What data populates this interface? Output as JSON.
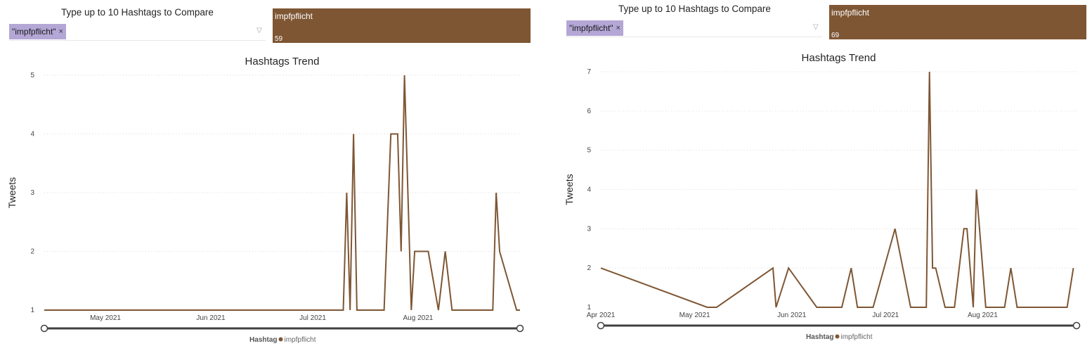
{
  "colors": {
    "series": "#7e5634",
    "chip": "#b4a7d6",
    "grid": "#d9d9d9",
    "slider": "#404040"
  },
  "panels": [
    {
      "filter_title": "Type up to 10 Hashtags to Compare",
      "chip_label": "\"impfpflicht\"",
      "chip_close": "×",
      "funnel_icon": "▽",
      "card_name": "impfpflicht",
      "card_count": "59",
      "legend_title": "Hashtag",
      "legend_item": "impfpflicht",
      "chart_data": {
        "type": "line",
        "title": "Hashtags Trend",
        "xlabel": "",
        "ylabel": "Tweets",
        "xlim": [
          "2021-04-13",
          "2021-08-31"
        ],
        "ylim": [
          1,
          5
        ],
        "yticks": [
          1,
          2,
          3,
          4,
          5
        ],
        "xticks": [
          {
            "date": "2021-05-01",
            "label": "May 2021"
          },
          {
            "date": "2021-06-01",
            "label": "Jun 2021"
          },
          {
            "date": "2021-07-01",
            "label": "Jul 2021"
          },
          {
            "date": "2021-08-01",
            "label": "Aug 2021"
          }
        ],
        "grid": true,
        "legend": "bottom-center",
        "series": [
          {
            "name": "impfpflicht",
            "points": [
              [
                "2021-04-13",
                1
              ],
              [
                "2021-07-10",
                1
              ],
              [
                "2021-07-11",
                3
              ],
              [
                "2021-07-12",
                1
              ],
              [
                "2021-07-13",
                4
              ],
              [
                "2021-07-14",
                1
              ],
              [
                "2021-07-22",
                1
              ],
              [
                "2021-07-24",
                4
              ],
              [
                "2021-07-26",
                4
              ],
              [
                "2021-07-27",
                2
              ],
              [
                "2021-07-28",
                5
              ],
              [
                "2021-07-30",
                1
              ],
              [
                "2021-07-31",
                2
              ],
              [
                "2021-08-04",
                2
              ],
              [
                "2021-08-07",
                1
              ],
              [
                "2021-08-09",
                2
              ],
              [
                "2021-08-11",
                1
              ],
              [
                "2021-08-23",
                1
              ],
              [
                "2021-08-24",
                3
              ],
              [
                "2021-08-25",
                2
              ],
              [
                "2021-08-30",
                1
              ],
              [
                "2021-08-31",
                1
              ]
            ]
          }
        ]
      }
    },
    {
      "filter_title": "Type up to 10 Hashtags to Compare",
      "chip_label": "\"impfpflicht\"",
      "chip_close": "×",
      "funnel_icon": "▽",
      "card_name": "impfpflicht",
      "card_count": "69",
      "legend_title": "Hashtag",
      "legend_item": "impfpflicht",
      "chart_data": {
        "type": "line",
        "title": "Hashtags Trend",
        "xlabel": "",
        "ylabel": "Tweets",
        "xlim": [
          "2021-04-01",
          "2021-08-31"
        ],
        "ylim": [
          1,
          7
        ],
        "yticks": [
          1,
          2,
          3,
          4,
          5,
          6,
          7
        ],
        "xticks": [
          {
            "date": "2021-04-01",
            "label": "Apr 2021"
          },
          {
            "date": "2021-05-01",
            "label": "May 2021"
          },
          {
            "date": "2021-06-01",
            "label": "Jun 2021"
          },
          {
            "date": "2021-07-01",
            "label": "Jul 2021"
          },
          {
            "date": "2021-08-01",
            "label": "Aug 2021"
          }
        ],
        "grid": true,
        "legend": "bottom-center",
        "series": [
          {
            "name": "impfpflicht",
            "points": [
              [
                "2021-04-01",
                2
              ],
              [
                "2021-05-05",
                1
              ],
              [
                "2021-05-08",
                1
              ],
              [
                "2021-05-26",
                2
              ],
              [
                "2021-05-27",
                1
              ],
              [
                "2021-05-31",
                2
              ],
              [
                "2021-06-09",
                1
              ],
              [
                "2021-06-17",
                1
              ],
              [
                "2021-06-20",
                2
              ],
              [
                "2021-06-22",
                1
              ],
              [
                "2021-06-27",
                1
              ],
              [
                "2021-07-04",
                3
              ],
              [
                "2021-07-09",
                1
              ],
              [
                "2021-07-14",
                1
              ],
              [
                "2021-07-15",
                7
              ],
              [
                "2021-07-16",
                2
              ],
              [
                "2021-07-17",
                2
              ],
              [
                "2021-07-20",
                1
              ],
              [
                "2021-07-23",
                1
              ],
              [
                "2021-07-26",
                3
              ],
              [
                "2021-07-27",
                3
              ],
              [
                "2021-07-29",
                1
              ],
              [
                "2021-07-30",
                4
              ],
              [
                "2021-08-01",
                2
              ],
              [
                "2021-08-02",
                1
              ],
              [
                "2021-08-08",
                1
              ],
              [
                "2021-08-10",
                2
              ],
              [
                "2021-08-12",
                1
              ],
              [
                "2021-08-28",
                1
              ],
              [
                "2021-08-30",
                2
              ]
            ]
          }
        ]
      }
    }
  ]
}
